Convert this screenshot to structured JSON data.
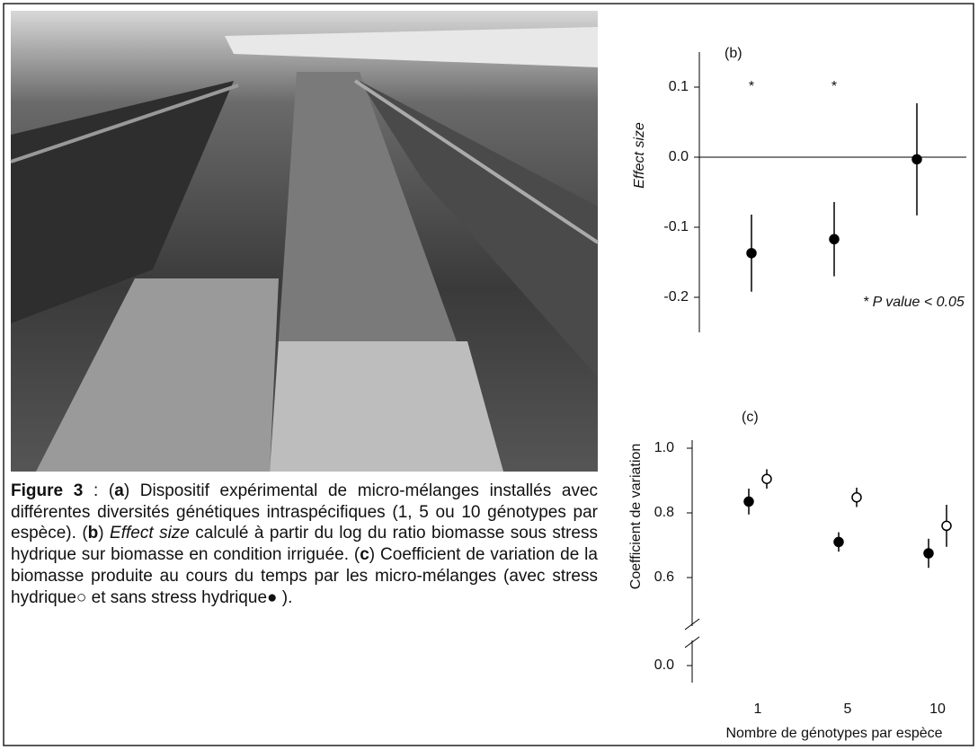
{
  "caption": {
    "parts": [
      {
        "text": "Figure 3",
        "style": "bold"
      },
      {
        "text": " : (",
        "style": "normal"
      },
      {
        "text": "a",
        "style": "bold"
      },
      {
        "text": ") Dispositif expérimental de micro-mélanges installés avec différentes diversités génétiques intraspécifiques (1, 5 ou 10 génotypes par espèce). (",
        "style": "normal"
      },
      {
        "text": "b",
        "style": "bold"
      },
      {
        "text": ") ",
        "style": "normal"
      },
      {
        "text": "Effect size",
        "style": "italic"
      },
      {
        "text": " calculé à partir du log du ratio biomasse sous stress hydrique sur biomasse en condition irriguée. (",
        "style": "normal"
      },
      {
        "text": "c",
        "style": "bold"
      },
      {
        "text": ") Coefficient de variation de la biomasse produite au cours du temps par les micro-mélanges (avec stress hydrique○ et sans stress hydrique● ).",
        "style": "normal"
      }
    ]
  },
  "chart_data": [
    {
      "type": "errorbar",
      "title": "(b)",
      "y_label": "Effect size",
      "note": "* P value < 0.05",
      "categories": [
        null,
        null,
        null
      ],
      "significance": [
        "*",
        "*",
        null
      ],
      "series": [
        {
          "marker": "filled",
          "color": "#000000",
          "values": [
            -0.137,
            -0.117,
            -0.003
          ],
          "errors": [
            0.055,
            0.053,
            0.08
          ]
        }
      ],
      "ylim": [
        -0.25,
        0.15
      ],
      "yticks": [
        0.1,
        {
          "value": 0,
          "label": "0.0"
        },
        -0.1,
        -0.2
      ],
      "zero_line": true
    },
    {
      "type": "errorbar",
      "title": "(c)",
      "y_label": "Coefficient de variation",
      "x_label": "Nombre de génotypes par espèce",
      "categories": [
        "1",
        "5",
        "10"
      ],
      "series": [
        {
          "marker": "filled",
          "color": "#000000",
          "values": [
            0.835,
            0.71,
            0.675
          ],
          "errors": [
            0.04,
            0.03,
            0.045
          ]
        },
        {
          "marker": "open",
          "color": "#000000",
          "values": [
            0.905,
            0.848,
            0.76
          ],
          "errors": [
            0.03,
            0.03,
            0.065
          ]
        }
      ],
      "ylim": [
        0.55,
        1.05
      ],
      "yticks": [
        {
          "value": 1,
          "label": "1.0"
        },
        0.8,
        0.6,
        {
          "value": 0,
          "label": "0.0"
        }
      ],
      "axis_break": true
    }
  ]
}
